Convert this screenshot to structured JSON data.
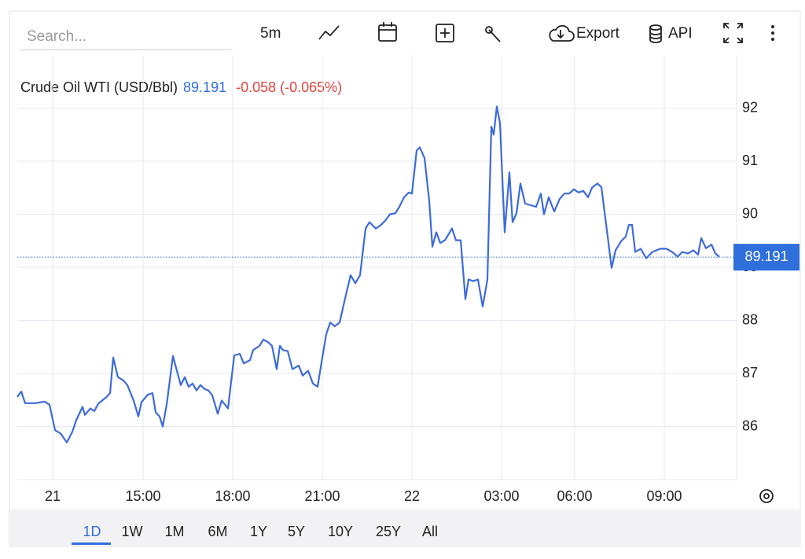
{
  "toolbar": {
    "search_placeholder": "Search...",
    "interval": "5m",
    "export": "Export",
    "api": "API"
  },
  "chart_data": {
    "type": "line",
    "title": "Crude Oil WTI (USD/Bbl)",
    "last": 89.191,
    "change": "-0.058 (-0.065%)",
    "color": "#3d6bd9",
    "last_color": "#2f6fdb",
    "change_color": "#e0443b",
    "x": [
      -45,
      -40,
      -35,
      -22,
      -10,
      -4,
      3,
      10,
      18,
      25,
      30,
      38,
      41,
      48,
      53,
      58,
      63,
      68,
      73,
      77,
      83,
      90,
      95,
      103,
      109,
      113,
      121,
      127,
      131,
      136,
      140,
      145,
      153,
      158,
      163,
      168,
      173,
      178,
      183,
      188,
      193,
      198,
      203,
      210,
      215,
      223,
      231,
      238,
      243,
      251,
      255,
      263,
      268,
      274,
      279,
      285,
      289,
      293,
      299,
      305,
      313,
      318,
      325,
      331,
      337,
      343,
      348,
      353,
      359,
      365,
      373,
      379,
      385,
      391,
      398,
      403,
      411,
      417,
      423,
      429,
      436,
      441,
      447,
      453,
      457,
      463,
      467,
      473,
      479,
      483,
      488,
      493,
      499,
      508,
      513,
      519,
      525,
      529,
      535,
      541,
      547,
      553,
      558,
      561,
      565,
      569,
      575,
      581,
      585,
      590,
      595,
      601,
      608,
      615,
      621,
      625,
      631,
      638,
      645,
      651,
      657,
      663,
      669,
      675,
      681,
      686,
      693,
      698,
      706,
      711,
      716,
      723,
      729,
      733,
      737,
      741,
      748,
      755,
      763,
      773,
      781,
      788,
      795,
      801,
      808,
      815,
      821,
      825,
      831,
      838,
      843,
      848
    ],
    "values": [
      86.56,
      86.66,
      86.44,
      86.44,
      86.47,
      86.41,
      85.93,
      85.87,
      85.7,
      85.9,
      86.12,
      86.37,
      86.22,
      86.34,
      86.29,
      86.43,
      86.49,
      86.55,
      86.63,
      87.3,
      86.93,
      86.87,
      86.78,
      86.49,
      86.19,
      86.46,
      86.6,
      86.63,
      86.27,
      86.19,
      86.0,
      86.41,
      87.33,
      87.05,
      86.78,
      86.93,
      86.75,
      86.81,
      86.68,
      86.78,
      86.71,
      86.68,
      86.59,
      86.24,
      86.49,
      86.34,
      87.34,
      87.37,
      87.19,
      87.25,
      87.44,
      87.52,
      87.64,
      87.59,
      87.52,
      87.08,
      87.52,
      87.44,
      87.42,
      87.08,
      87.15,
      86.96,
      87.05,
      86.81,
      86.75,
      87.3,
      87.74,
      87.96,
      87.89,
      87.96,
      88.48,
      88.85,
      88.7,
      88.85,
      89.73,
      89.85,
      89.73,
      89.79,
      89.88,
      90.0,
      90.02,
      90.14,
      90.32,
      90.41,
      90.39,
      91.2,
      91.26,
      91.06,
      90.25,
      89.39,
      89.66,
      89.46,
      89.51,
      89.73,
      89.51,
      89.51,
      88.4,
      88.77,
      88.74,
      88.77,
      88.26,
      88.77,
      91.65,
      91.5,
      92.03,
      91.72,
      89.66,
      90.79,
      89.85,
      90.02,
      90.58,
      90.2,
      90.17,
      90.14,
      90.39,
      90.0,
      90.32,
      90.05,
      90.29,
      90.39,
      90.39,
      90.47,
      90.41,
      90.44,
      90.32,
      90.5,
      90.58,
      90.51,
      89.58,
      88.99,
      89.32,
      89.49,
      89.58,
      89.8,
      89.8,
      89.29,
      89.35,
      89.17,
      89.29,
      89.35,
      89.35,
      89.29,
      89.2,
      89.29,
      89.26,
      89.32,
      89.24,
      89.55,
      89.36,
      89.43,
      89.26,
      89.2
    ],
    "xlim": [
      -45,
      870
    ],
    "xticks": [
      {
        "value": 0,
        "label": "21"
      },
      {
        "value": 115,
        "label": "15:00"
      },
      {
        "value": 229,
        "label": "18:00"
      },
      {
        "value": 343,
        "label": "21:00"
      },
      {
        "value": 457,
        "label": "22"
      },
      {
        "value": 571,
        "label": "03:00"
      },
      {
        "value": 664,
        "label": "06:00"
      },
      {
        "value": 778,
        "label": "09:00"
      }
    ],
    "ylim": [
      85,
      93
    ],
    "yticks": [
      86,
      87,
      88,
      89,
      90,
      91,
      92
    ],
    "grid": true
  },
  "ranges": [
    "1D",
    "1W",
    "1M",
    "6M",
    "1Y",
    "5Y",
    "10Y",
    "25Y",
    "All"
  ]
}
